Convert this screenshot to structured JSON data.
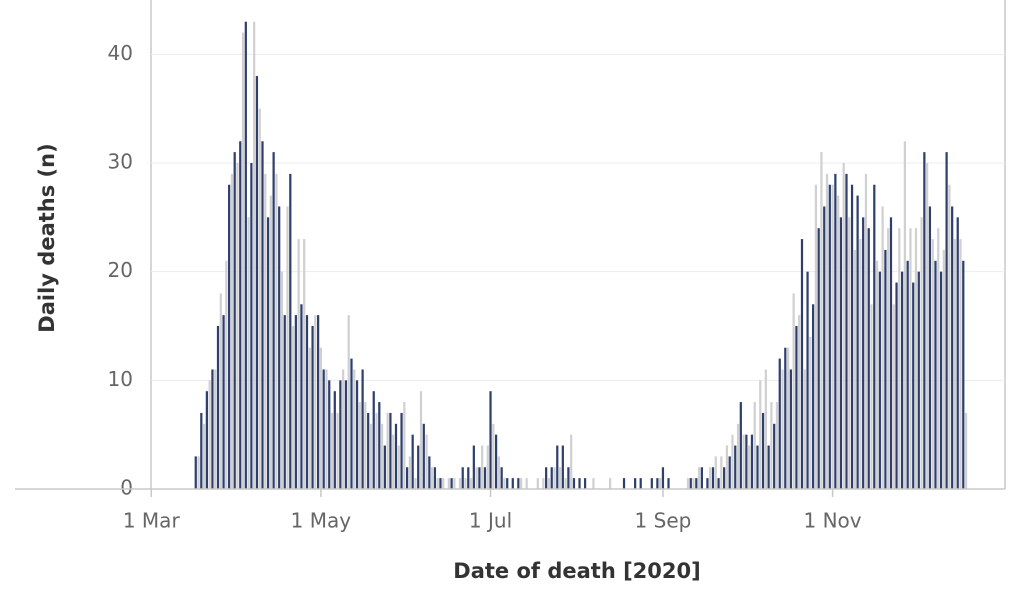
{
  "chart_data": {
    "type": "bar",
    "x_label": "Date of death [2020]",
    "y_label": "Daily deaths (n)",
    "colors": [
      "#2e3f6e",
      "#d0d0d0"
    ],
    "grid": true,
    "xlim": [
      "2020-01-12",
      "2021-01-02"
    ],
    "xticks": [
      {
        "value": "2020-03-01",
        "label": "1 Mar"
      },
      {
        "value": "2020-05-01",
        "label": "1 May"
      },
      {
        "value": "2020-07-01",
        "label": "1 Jul"
      },
      {
        "value": "2020-09-01",
        "label": "1 Sep"
      },
      {
        "value": "2020-11-01",
        "label": "1 Nov"
      }
    ],
    "ylim": [
      0,
      45
    ],
    "yticks": [
      0,
      10,
      20,
      30,
      40
    ],
    "x": [
      "2020-03-17",
      "2020-03-18",
      "2020-03-19",
      "2020-03-20",
      "2020-03-21",
      "2020-03-22",
      "2020-03-23",
      "2020-03-24",
      "2020-03-25",
      "2020-03-26",
      "2020-03-27",
      "2020-03-28",
      "2020-03-29",
      "2020-03-30",
      "2020-03-31",
      "2020-04-01",
      "2020-04-02",
      "2020-04-03",
      "2020-04-04",
      "2020-04-05",
      "2020-04-06",
      "2020-04-07",
      "2020-04-08",
      "2020-04-09",
      "2020-04-10",
      "2020-04-11",
      "2020-04-12",
      "2020-04-13",
      "2020-04-14",
      "2020-04-15",
      "2020-04-16",
      "2020-04-17",
      "2020-04-18",
      "2020-04-19",
      "2020-04-20",
      "2020-04-21",
      "2020-04-22",
      "2020-04-23",
      "2020-04-24",
      "2020-04-25",
      "2020-04-26",
      "2020-04-27",
      "2020-04-28",
      "2020-04-29",
      "2020-04-30",
      "2020-05-01",
      "2020-05-02",
      "2020-05-03",
      "2020-05-04",
      "2020-05-05",
      "2020-05-06",
      "2020-05-07",
      "2020-05-08",
      "2020-05-09",
      "2020-05-10",
      "2020-05-11",
      "2020-05-12",
      "2020-05-13",
      "2020-05-14",
      "2020-05-15",
      "2020-05-16",
      "2020-05-17",
      "2020-05-18",
      "2020-05-19",
      "2020-05-20",
      "2020-05-21",
      "2020-05-22",
      "2020-05-23",
      "2020-05-24",
      "2020-05-25",
      "2020-05-26",
      "2020-05-27",
      "2020-05-28",
      "2020-05-29",
      "2020-05-30",
      "2020-05-31",
      "2020-06-01",
      "2020-06-02",
      "2020-06-03",
      "2020-06-04",
      "2020-06-05",
      "2020-06-06",
      "2020-06-07",
      "2020-06-08",
      "2020-06-09",
      "2020-06-10",
      "2020-06-11",
      "2020-06-12",
      "2020-06-13",
      "2020-06-14",
      "2020-06-15",
      "2020-06-16",
      "2020-06-17",
      "2020-06-18",
      "2020-06-19",
      "2020-06-20",
      "2020-06-21",
      "2020-06-22",
      "2020-06-23",
      "2020-06-24",
      "2020-06-25",
      "2020-06-26",
      "2020-06-27",
      "2020-06-28",
      "2020-06-29",
      "2020-06-30",
      "2020-07-01",
      "2020-07-02",
      "2020-07-03",
      "2020-07-04",
      "2020-07-05",
      "2020-07-06",
      "2020-07-07",
      "2020-07-08",
      "2020-07-09",
      "2020-07-10",
      "2020-07-11",
      "2020-07-12",
      "2020-07-13",
      "2020-07-14",
      "2020-07-15",
      "2020-07-16",
      "2020-07-17",
      "2020-07-18",
      "2020-07-19",
      "2020-07-20",
      "2020-07-21",
      "2020-07-22",
      "2020-07-23",
      "2020-07-24",
      "2020-07-25",
      "2020-07-26",
      "2020-07-27",
      "2020-07-28",
      "2020-07-29",
      "2020-07-30",
      "2020-07-31",
      "2020-08-01",
      "2020-08-02",
      "2020-08-03",
      "2020-08-04",
      "2020-08-05",
      "2020-08-06",
      "2020-08-07",
      "2020-08-08",
      "2020-08-09",
      "2020-08-10",
      "2020-08-11",
      "2020-08-12",
      "2020-08-13",
      "2020-08-14",
      "2020-08-15",
      "2020-08-16",
      "2020-08-17",
      "2020-08-18",
      "2020-08-19",
      "2020-08-20",
      "2020-08-21",
      "2020-08-22",
      "2020-08-23",
      "2020-08-24",
      "2020-08-25",
      "2020-08-26",
      "2020-08-27",
      "2020-08-28",
      "2020-08-29",
      "2020-08-30",
      "2020-08-31",
      "2020-09-01",
      "2020-09-02",
      "2020-09-03",
      "2020-09-04",
      "2020-09-05",
      "2020-09-06",
      "2020-09-07",
      "2020-09-08",
      "2020-09-09",
      "2020-09-10",
      "2020-09-11",
      "2020-09-12",
      "2020-09-13",
      "2020-09-14",
      "2020-09-15",
      "2020-09-16",
      "2020-09-17",
      "2020-09-18",
      "2020-09-19",
      "2020-09-20",
      "2020-09-21",
      "2020-09-22",
      "2020-09-23",
      "2020-09-24",
      "2020-09-25",
      "2020-09-26",
      "2020-09-27",
      "2020-09-28",
      "2020-09-29",
      "2020-09-30",
      "2020-10-01",
      "2020-10-02",
      "2020-10-03",
      "2020-10-04",
      "2020-10-05",
      "2020-10-06",
      "2020-10-07",
      "2020-10-08",
      "2020-10-09",
      "2020-10-10",
      "2020-10-11",
      "2020-10-12",
      "2020-10-13",
      "2020-10-14",
      "2020-10-15",
      "2020-10-16",
      "2020-10-17",
      "2020-10-18",
      "2020-10-19",
      "2020-10-20",
      "2020-10-21",
      "2020-10-22",
      "2020-10-23",
      "2020-10-24",
      "2020-10-25",
      "2020-10-26",
      "2020-10-27",
      "2020-10-28",
      "2020-10-29",
      "2020-10-30",
      "2020-10-31",
      "2020-11-01",
      "2020-11-02",
      "2020-11-03",
      "2020-11-04",
      "2020-11-05",
      "2020-11-06",
      "2020-11-07",
      "2020-11-08",
      "2020-11-09",
      "2020-11-10",
      "2020-11-11",
      "2020-11-12",
      "2020-11-13",
      "2020-11-14",
      "2020-11-15",
      "2020-11-16",
      "2020-11-17",
      "2020-11-18",
      "2020-11-19",
      "2020-11-20",
      "2020-11-21",
      "2020-11-22",
      "2020-11-23",
      "2020-11-24",
      "2020-11-25",
      "2020-11-26",
      "2020-11-27",
      "2020-11-28",
      "2020-11-29",
      "2020-11-30",
      "2020-12-01",
      "2020-12-02",
      "2020-12-03",
      "2020-12-04",
      "2020-12-05",
      "2020-12-06",
      "2020-12-07",
      "2020-12-08",
      "2020-12-09",
      "2020-12-10",
      "2020-12-11",
      "2020-12-12",
      "2020-12-13",
      "2020-12-14",
      "2020-12-15",
      "2020-12-16",
      "2020-12-17",
      "2020-12-18",
      "2020-12-19"
    ],
    "values": [
      3,
      3,
      7,
      6,
      9,
      10,
      11,
      11,
      15,
      18,
      16,
      21,
      28,
      29,
      31,
      30,
      32,
      42,
      43,
      25,
      30,
      43,
      38,
      35,
      32,
      29,
      25,
      27,
      31,
      29,
      26,
      20,
      16,
      26,
      29,
      15,
      16,
      23,
      17,
      23,
      16,
      13,
      15,
      16,
      16,
      13,
      11,
      11,
      10,
      7,
      9,
      7,
      10,
      11,
      10,
      16,
      12,
      11,
      10,
      8,
      11,
      8,
      7,
      6,
      9,
      7,
      8,
      6,
      4,
      7,
      7,
      5,
      6,
      4,
      7,
      8,
      2,
      3,
      5,
      1,
      4,
      9,
      6,
      5,
      3,
      2,
      2,
      1,
      1,
      1,
      0,
      1,
      1,
      1,
      0,
      1,
      2,
      1,
      2,
      1,
      4,
      2,
      2,
      4,
      2,
      4,
      9,
      6,
      5,
      3,
      2,
      1,
      1,
      0,
      1,
      0,
      1,
      1,
      0,
      1,
      0,
      0,
      0,
      1,
      0,
      1,
      2,
      1,
      2,
      2,
      4,
      2,
      4,
      1,
      2,
      5,
      1,
      0,
      1,
      0,
      1,
      0,
      0,
      1,
      0,
      0,
      0,
      0,
      0,
      1,
      0,
      0,
      0,
      0,
      1,
      0,
      0,
      0,
      1,
      0,
      1,
      0,
      0,
      0,
      1,
      0,
      1,
      1,
      2,
      0,
      1,
      0,
      0,
      0,
      0,
      0,
      0,
      1,
      1,
      1,
      1,
      2,
      2,
      0,
      1,
      2,
      2,
      3,
      1,
      3,
      2,
      4,
      3,
      5,
      4,
      6,
      8,
      5,
      5,
      4,
      5,
      8,
      4,
      10,
      7,
      11,
      4,
      8,
      6,
      8,
      12,
      11,
      13,
      13,
      11,
      18,
      15,
      16,
      23,
      11,
      20,
      14,
      17,
      28,
      24,
      31,
      26,
      29,
      28,
      28,
      29,
      27,
      25,
      30,
      29,
      25,
      28,
      22,
      27,
      23,
      25,
      29,
      24,
      17,
      28,
      21,
      20,
      26,
      22,
      24,
      25,
      17,
      19,
      24,
      20,
      32,
      21,
      24,
      19,
      24,
      20,
      25,
      31,
      30,
      26,
      23,
      21,
      24,
      20,
      22,
      31,
      28,
      26,
      23,
      25,
      23,
      21,
      7
    ]
  }
}
